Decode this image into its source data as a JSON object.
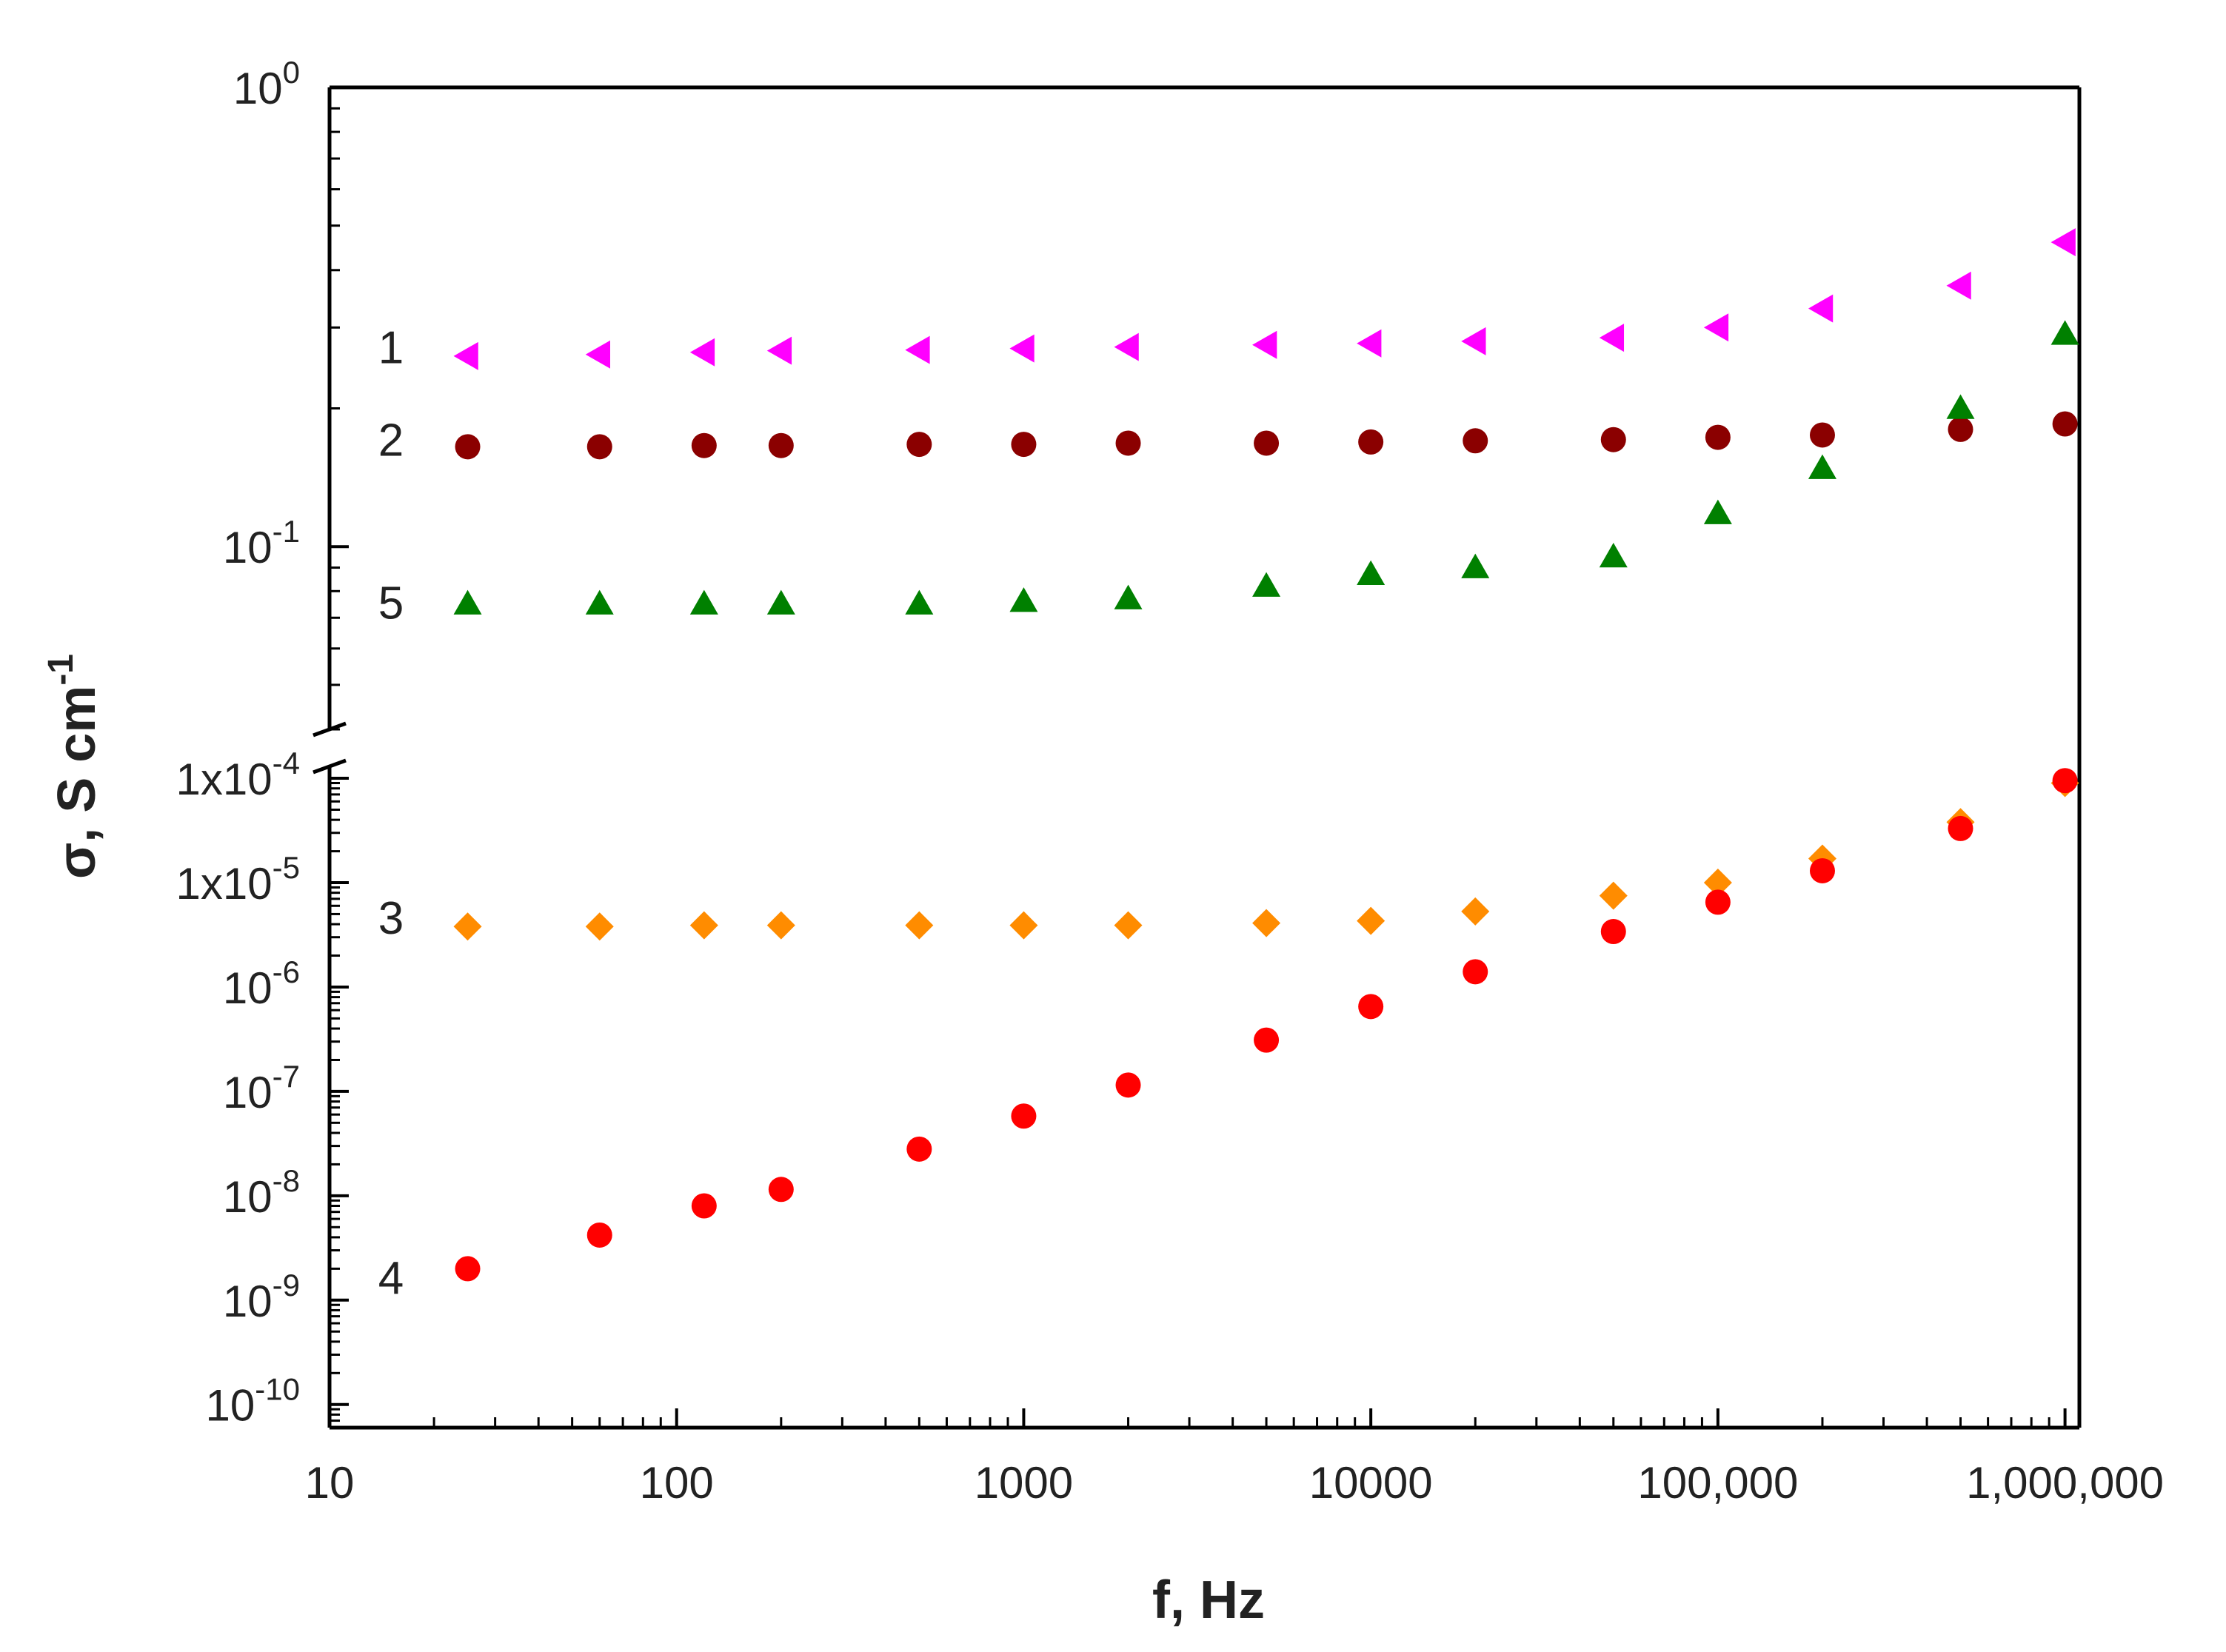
{
  "chart_data": {
    "type": "scatter",
    "title": "",
    "xlabel": "f, Hz",
    "ylabel": "σ, S cm",
    "ylabel_sup": "-1",
    "xscale": "log",
    "yscale": "log-broken",
    "xlim": [
      10,
      1100000
    ],
    "x_ticks": [
      {
        "value": 10,
        "label": "10"
      },
      {
        "value": 100,
        "label": "100"
      },
      {
        "value": 1000,
        "label": "1000"
      },
      {
        "value": 10000,
        "label": "10000"
      },
      {
        "value": 100000,
        "label": "100,000"
      },
      {
        "value": 1000000,
        "label": "1,000,000"
      }
    ],
    "y_upper": {
      "range": [
        0.04,
        1
      ],
      "ticks": [
        {
          "value": 1,
          "base": "10",
          "sup": "0"
        },
        {
          "value": 0.1,
          "base": "10",
          "sup": "-1"
        }
      ]
    },
    "y_lower": {
      "range": [
        6e-11,
        0.00013
      ],
      "ticks": [
        {
          "value": 0.0001,
          "base": "1x10",
          "sup": "-4"
        },
        {
          "value": 1e-05,
          "base": "1x10",
          "sup": "-5"
        },
        {
          "value": 1e-06,
          "base": "10",
          "sup": "-6"
        },
        {
          "value": 1e-07,
          "base": "10",
          "sup": "-7"
        },
        {
          "value": 1e-08,
          "base": "10",
          "sup": "-8"
        },
        {
          "value": 1e-09,
          "base": "10",
          "sup": "-9"
        },
        {
          "value": 1e-10,
          "base": "10",
          "sup": "-10"
        }
      ]
    },
    "x": [
      25,
      60,
      120,
      200,
      500,
      1000,
      2000,
      5000,
      10000,
      20000,
      50000,
      100000,
      200000,
      500000,
      1000000
    ],
    "series": [
      {
        "name": "1",
        "label": "1",
        "color": "#ff00ff",
        "marker": "triangle-left",
        "label_y": 0.27,
        "values": [
          0.26,
          0.262,
          0.265,
          0.267,
          0.268,
          0.27,
          0.272,
          0.275,
          0.277,
          0.28,
          0.285,
          0.3,
          0.33,
          0.37,
          0.46
        ]
      },
      {
        "name": "2",
        "label": "2",
        "color": "#8b0000",
        "marker": "circle",
        "label_y": 0.17,
        "values": [
          0.165,
          0.165,
          0.166,
          0.166,
          0.167,
          0.167,
          0.168,
          0.168,
          0.169,
          0.17,
          0.171,
          0.173,
          0.175,
          0.18,
          0.185
        ]
      },
      {
        "name": "5",
        "label": "5",
        "color": "#008000",
        "marker": "triangle-up",
        "label_y": 0.075,
        "values": [
          0.075,
          0.075,
          0.075,
          0.075,
          0.075,
          0.076,
          0.077,
          0.082,
          0.087,
          0.09,
          0.095,
          0.118,
          0.148,
          0.2,
          0.29
        ]
      },
      {
        "name": "3",
        "label": "3",
        "color": "#ff8c00",
        "marker": "diamond",
        "label_y": 4.5e-06,
        "values": [
          3.8e-06,
          3.8e-06,
          3.9e-06,
          3.9e-06,
          3.9e-06,
          3.9e-06,
          3.9e-06,
          4.1e-06,
          4.3e-06,
          5.3e-06,
          7.5e-06,
          1e-05,
          1.7e-05,
          3.8e-05,
          9e-05
        ]
      },
      {
        "name": "4",
        "label": "4",
        "color": "#ff0000",
        "marker": "circle",
        "label_y": 1.6e-09,
        "values": [
          2e-09,
          4.2e-09,
          8e-09,
          1.15e-08,
          2.8e-08,
          5.8e-08,
          1.15e-07,
          3.1e-07,
          6.5e-07,
          1.4e-06,
          3.4e-06,
          6.5e-06,
          1.3e-05,
          3.3e-05,
          9.5e-05
        ]
      }
    ]
  }
}
